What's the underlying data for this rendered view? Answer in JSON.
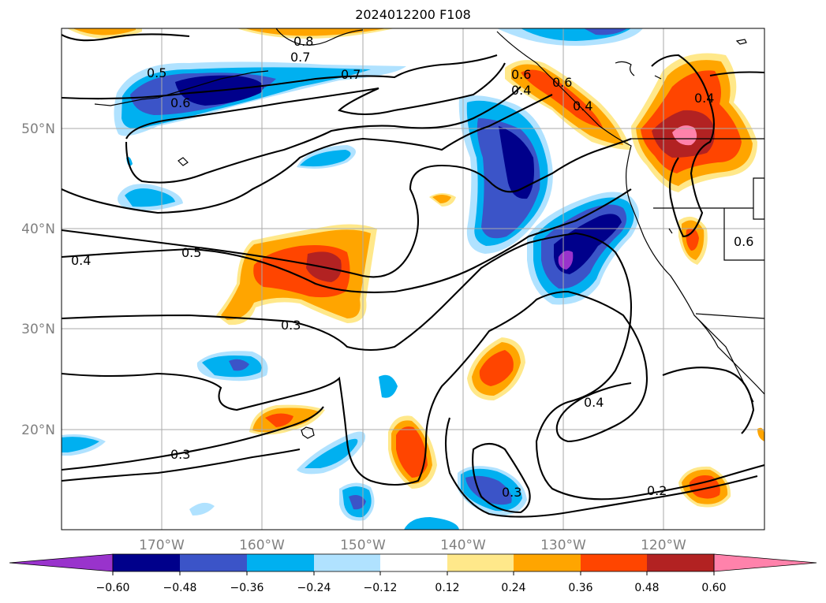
{
  "title": "2024012200 F108",
  "lat_labels": [
    "50°N",
    "40°N",
    "30°N",
    "20°N"
  ],
  "lon_labels": [
    "170°W",
    "160°W",
    "150°W",
    "140°W",
    "130°W",
    "120°W"
  ],
  "contour_labels": [
    "0.8",
    "0.7",
    "0.7",
    "0.6",
    "0.5",
    "0.5",
    "0.4",
    "0.3",
    "0.3",
    "0.3",
    "0.4",
    "0.2",
    "0.4",
    "0.4",
    "0.6",
    "0.6",
    "0.4",
    "0.6"
  ],
  "colorbar": {
    "ticks": [
      "−0.60",
      "−0.48",
      "−0.36",
      "−0.24",
      "−0.12",
      "0.12",
      "0.24",
      "0.36",
      "0.48",
      "0.60"
    ],
    "colors": [
      "#9933cc",
      "#00008b",
      "#3b54c8",
      "#00b0f0",
      "#b0e2ff",
      "#ffffff",
      "#ffe88a",
      "#ffa500",
      "#ff4500",
      "#b22222",
      "#ff82ab"
    ]
  }
}
